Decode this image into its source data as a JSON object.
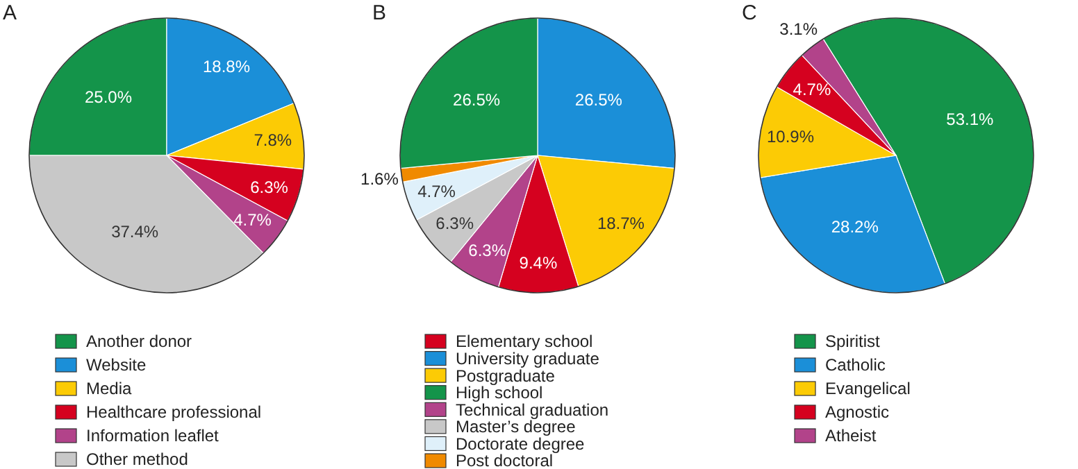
{
  "chart_data": [
    {
      "type": "pie",
      "title": "A",
      "categories": [
        "Another donor",
        "Website",
        "Media",
        "Healthcare professional",
        "Information leaflet",
        "Other method"
      ],
      "values": [
        25.0,
        18.8,
        7.8,
        6.3,
        4.7,
        37.4
      ],
      "value_labels": [
        "25.0%",
        "18.8%",
        "7.8%",
        "6.3%",
        "4.7%",
        "37.4%"
      ],
      "colors": [
        "#14944a",
        "#1b8fd8",
        "#fccb05",
        "#d5011f",
        "#b2438a",
        "#c8c8c8"
      ],
      "legend": "bottom"
    },
    {
      "type": "pie",
      "title": "B",
      "categories": [
        "Elementary school",
        "University graduate",
        "Postgraduate",
        "High school",
        "Technical graduation",
        "Master’s degree",
        "Doctorate degree",
        "Post doctoral"
      ],
      "values": [
        9.4,
        26.5,
        18.7,
        26.5,
        6.3,
        6.3,
        4.7,
        1.6
      ],
      "value_labels": [
        "9.4%",
        "26.5%",
        "18.7%",
        "26.5%",
        "6.3%",
        "6.3%",
        "4.7%",
        "1.6%"
      ],
      "colors": [
        "#d5011f",
        "#1b8fd8",
        "#fccb05",
        "#14944a",
        "#b2438a",
        "#c8c8c8",
        "#dff0fa",
        "#f08a00"
      ],
      "legend": "bottom"
    },
    {
      "type": "pie",
      "title": "C",
      "categories": [
        "Spiritist",
        "Catholic",
        "Evangelical",
        "Agnostic",
        "Atheist"
      ],
      "values": [
        53.1,
        28.2,
        10.9,
        4.7,
        3.1
      ],
      "value_labels": [
        "53.1%",
        "28.2%",
        "10.9%",
        "4.7%",
        "3.1%"
      ],
      "colors": [
        "#14944a",
        "#1b8fd8",
        "#fccb05",
        "#d5011f",
        "#b2438a"
      ],
      "legend": "bottom"
    }
  ]
}
